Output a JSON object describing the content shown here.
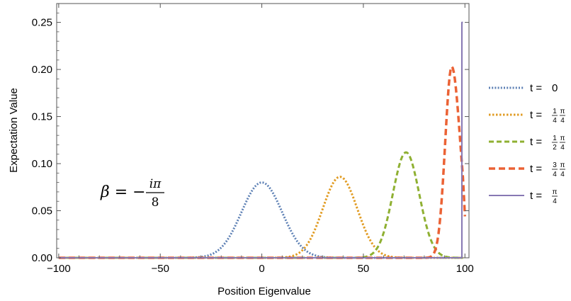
{
  "chart_data": {
    "type": "line",
    "title": "",
    "xlabel": "Position Eigenvalue",
    "ylabel": "Expectation Value",
    "xlim": [
      -101,
      102
    ],
    "ylim": [
      0,
      0.27
    ],
    "xticks": [
      -100,
      -50,
      0,
      50,
      100
    ],
    "xtick_labels": [
      "−100",
      "−50",
      "0",
      "50",
      "100"
    ],
    "yticks": [
      0,
      0.05,
      0.1,
      0.15,
      0.2,
      0.25
    ],
    "ytick_labels": [
      "0.00",
      "0.05",
      "0.10",
      "0.15",
      "0.20",
      "0.25"
    ],
    "grid": false,
    "legend_position": "right",
    "annotation": {
      "lhs": "β = −",
      "numerator": "iπ",
      "denominator": "8"
    },
    "series": [
      {
        "name": "t = 0",
        "legend": {
          "prefix": "t = ",
          "num": "",
          "den": "",
          "tail": "0"
        },
        "color": "#5E81B5",
        "dash": "2,2.2",
        "width": 3,
        "shape": "gaussian",
        "center": 0,
        "peak": 0.08,
        "sigma": 10,
        "x": [
          -100,
          -40,
          -30,
          -20,
          -15,
          -10,
          -5,
          0,
          5,
          10,
          15,
          20,
          30,
          40,
          99
        ],
        "values": [
          0,
          2e-05,
          0.0009,
          0.0108,
          0.026,
          0.0485,
          0.0706,
          0.08,
          0.0706,
          0.0485,
          0.026,
          0.0108,
          0.0009,
          2e-05,
          0
        ]
      },
      {
        "name": "t = 1/4 π/4",
        "legend": {
          "prefix": "t = ",
          "num": "1",
          "den": "4",
          "tail": "π/4"
        },
        "color": "#E19C24",
        "dash": "2.5,2.5",
        "width": 3,
        "shape": "gaussian",
        "center": 38.5,
        "peak": 0.086,
        "sigma": 8.5,
        "x": [
          -100,
          10,
          15,
          20,
          25,
          30,
          35,
          38.5,
          42,
          47,
          52,
          57,
          62,
          67,
          99
        ],
        "values": [
          0,
          0.0003,
          0.0019,
          0.0083,
          0.0245,
          0.0517,
          0.0787,
          0.086,
          0.0787,
          0.0517,
          0.0245,
          0.0083,
          0.0019,
          0.0003,
          0
        ]
      },
      {
        "name": "t = 1/2 π/4",
        "legend": {
          "prefix": "t = ",
          "num": "1",
          "den": "2",
          "tail": "π/4"
        },
        "color": "#8FB032",
        "dash": "7,4",
        "width": 3,
        "shape": "gaussian",
        "center": 71,
        "peak": 0.112,
        "sigma": 6.5,
        "x": [
          -100,
          50,
          55,
          60,
          65,
          68,
          71,
          74,
          77,
          82,
          87,
          92,
          99
        ],
        "values": [
          0,
          0.0006,
          0.0053,
          0.0268,
          0.0734,
          0.1002,
          0.112,
          0.1002,
          0.0734,
          0.0268,
          0.0053,
          0.0006,
          0
        ]
      },
      {
        "name": "t = 3/4 π/4",
        "legend": {
          "prefix": "t = ",
          "num": "3",
          "den": "4",
          "tail": "π/4"
        },
        "color": "#EB6235",
        "dash": "9,5",
        "width": 3.5,
        "shape": "gaussian",
        "center": 93.5,
        "peak": 0.203,
        "sigma": 3.2,
        "x": [
          -100,
          80,
          83,
          86,
          89,
          91,
          93.5,
          95,
          96.5,
          97.5,
          98.5,
          99.5,
          100
        ],
        "values": [
          0,
          0.0003,
          0.0094,
          0.0432,
          0.1339,
          0.1867,
          0.203,
          0.18,
          0.134,
          0.11,
          0.097,
          0.06,
          0.028
        ]
      },
      {
        "name": "t = π/4",
        "legend": {
          "prefix": "t = ",
          "num": "π",
          "den": "4",
          "tail": ""
        },
        "color": "#8778B3",
        "dash": "",
        "width": 2,
        "shape": "spike",
        "x": [
          -100,
          97.5,
          98.5,
          98.5,
          99
        ],
        "values": [
          0,
          0,
          0,
          0.25,
          0.25
        ]
      }
    ]
  }
}
